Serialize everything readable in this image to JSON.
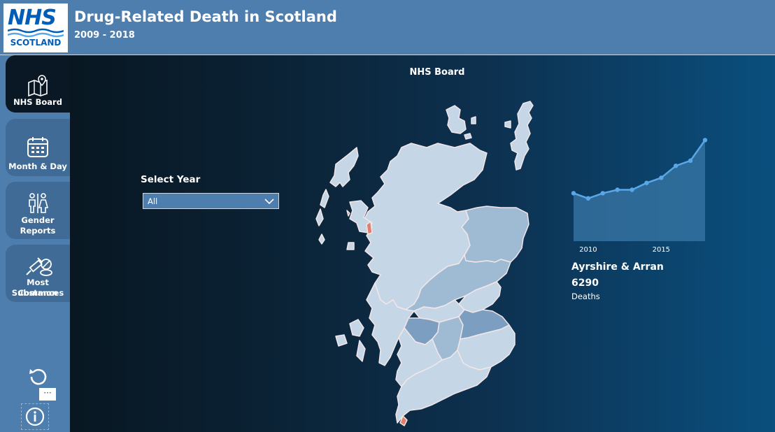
{
  "header": {
    "logo_main": "NHS",
    "logo_sub": "SCOTLAND",
    "title": "Drug-Related Death in Scotland",
    "subtitle": "2009 - 2018"
  },
  "nav": [
    {
      "id": "nhs-board",
      "lines": [
        "NHS Board"
      ],
      "icon": "map-pin-icon",
      "active": true
    },
    {
      "id": "month-day",
      "lines": [
        "Month & Day"
      ],
      "icon": "calendar-icon",
      "active": false
    },
    {
      "id": "gender",
      "lines": [
        "Gender",
        "Reports"
      ],
      "icon": "gender-icon",
      "active": false
    },
    {
      "id": "substances",
      "lines": [
        "Most Common",
        "Substances"
      ],
      "icon": "pills-syringe-icon",
      "active": false
    }
  ],
  "sidebar_buttons": {
    "reset": "reset-icon",
    "more": "···",
    "info": "info-icon"
  },
  "main": {
    "page_title": "NHS Board",
    "select_label": "Select Year",
    "select_value": "All"
  },
  "chart_data": {
    "type": "area",
    "x": [
      2009,
      2010,
      2011,
      2012,
      2013,
      2014,
      2015,
      2016,
      2017,
      2018
    ],
    "values": [
      28,
      25,
      28,
      30,
      30,
      34,
      37,
      44,
      47,
      59
    ],
    "ylim": [
      0,
      60
    ],
    "xticks": [
      "2010",
      "2015"
    ],
    "xtick_values": [
      2010,
      2015
    ],
    "color": "#5aa7e8",
    "fill": "#3a78a8"
  },
  "selection": {
    "board_name": "Ayrshire & Arran",
    "value": "6290",
    "unit": "Deaths"
  },
  "map": {
    "colors": {
      "light": "#c5d6e6",
      "mid": "#9fbbd4",
      "dark": "#7c9ec0",
      "highlight": "#e0806c",
      "outline": "#f2e6e8"
    }
  }
}
